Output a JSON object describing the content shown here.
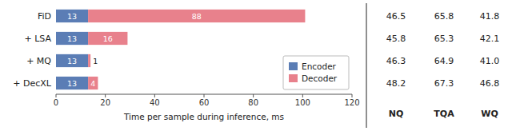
{
  "chart_data": {
    "type": "bar",
    "orientation": "horizontal",
    "stacked": true,
    "categories": [
      "FiD",
      "+ LSA",
      "+ MQ",
      "+ DecXL"
    ],
    "series": [
      {
        "name": "Encoder",
        "color": "#5b7db5",
        "values": [
          13,
          13,
          13,
          13
        ]
      },
      {
        "name": "Decoder",
        "color": "#e8818c",
        "values": [
          88,
          16,
          1,
          4
        ]
      }
    ],
    "xlabel": "Time per sample during inference, ms",
    "xlim": [
      0,
      120
    ],
    "xticks": [
      0,
      20,
      40,
      60,
      80,
      100,
      120
    ],
    "data_labels": true,
    "legend": "lower right",
    "table": {
      "columns": [
        "NQ",
        "TQA",
        "WQ"
      ],
      "rows": [
        [
          "46.5",
          "65.8",
          "41.8"
        ],
        [
          "45.8",
          "65.3",
          "42.1"
        ],
        [
          "46.3",
          "64.9",
          "41.0"
        ],
        [
          "48.2",
          "67.3",
          "46.8"
        ]
      ]
    }
  }
}
